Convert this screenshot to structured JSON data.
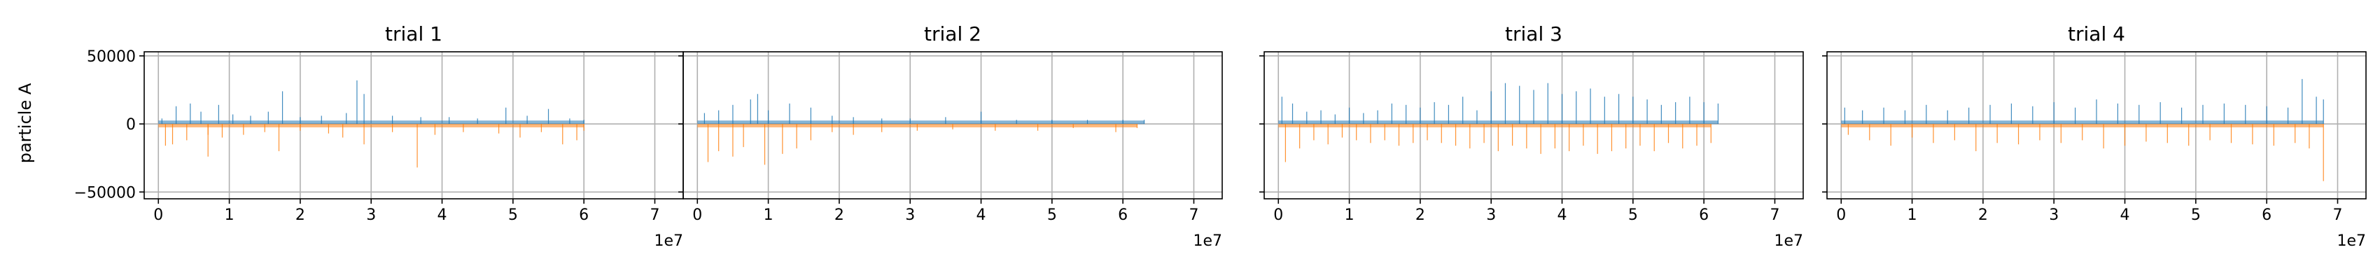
{
  "figure": {
    "ylabel": "particle A",
    "x_offset_label": "1e7"
  },
  "colors": {
    "positive": "#1f77b4",
    "negative": "#ff7f0e",
    "grid": "#b0b0b0",
    "axes": "#000000"
  },
  "chart_data": [
    {
      "type": "bar",
      "title": "trial 1",
      "xlabel": "",
      "ylabel": "particle A",
      "xlim": [
        -0.2,
        7.4
      ],
      "ylim": [
        -55000,
        53000
      ],
      "x_ticks": [
        0,
        1,
        2,
        3,
        4,
        5,
        6,
        7
      ],
      "y_ticks": [
        -50000,
        0,
        50000
      ],
      "x_scale_note": "1e7",
      "grid": true,
      "series": [
        {
          "sign": "positive",
          "x": [
            0.05,
            0.25,
            0.45,
            0.6,
            0.85,
            1.05,
            1.3,
            1.55,
            1.75,
            2.0,
            2.3,
            2.65,
            2.8,
            2.9,
            3.3,
            3.7,
            4.1,
            4.5,
            4.9,
            5.2,
            5.5,
            5.8,
            6.0
          ],
          "values": [
            4000,
            13000,
            15000,
            9000,
            14000,
            7000,
            6000,
            9000,
            24000,
            5000,
            6000,
            8000,
            32000,
            22000,
            6000,
            5000,
            5000,
            4000,
            12000,
            6000,
            11000,
            4000,
            3000
          ]
        },
        {
          "sign": "negative",
          "x": [
            0.1,
            0.2,
            0.4,
            0.7,
            0.7,
            0.9,
            1.2,
            1.5,
            1.7,
            2.0,
            2.4,
            2.6,
            2.9,
            3.3,
            3.65,
            3.9,
            4.3,
            4.8,
            5.1,
            5.4,
            5.7,
            5.9,
            6.0
          ],
          "values": [
            -16000,
            -15000,
            -12000,
            -8000,
            -24000,
            -10000,
            -8000,
            -6000,
            -20000,
            -5000,
            -7000,
            -10000,
            -15000,
            -6000,
            -32000,
            -8000,
            -6000,
            -7000,
            -10000,
            -6000,
            -15000,
            -12000,
            -5000
          ]
        }
      ]
    },
    {
      "type": "bar",
      "title": "trial 2",
      "xlabel": "",
      "ylabel": "",
      "xlim": [
        -0.2,
        7.4
      ],
      "ylim": [
        -55000,
        53000
      ],
      "x_ticks": [
        0,
        1,
        2,
        3,
        4,
        5,
        6,
        7
      ],
      "y_ticks": [
        -50000,
        0,
        50000
      ],
      "x_scale_note": "1e7",
      "grid": true,
      "series": [
        {
          "sign": "positive",
          "x": [
            0.1,
            0.3,
            0.5,
            0.75,
            0.85,
            1.0,
            1.3,
            1.6,
            1.9,
            2.2,
            2.6,
            3.0,
            3.5,
            4.0,
            4.5,
            5.0,
            5.5,
            6.0,
            6.3
          ],
          "values": [
            8000,
            10000,
            14000,
            18000,
            22000,
            10000,
            15000,
            12000,
            6000,
            5000,
            4000,
            4000,
            5000,
            9000,
            3000,
            3000,
            3000,
            3000,
            3000
          ]
        },
        {
          "sign": "negative",
          "x": [
            0.15,
            0.3,
            0.5,
            0.65,
            0.95,
            1.2,
            1.4,
            1.6,
            1.9,
            2.2,
            2.6,
            3.1,
            3.6,
            4.2,
            4.8,
            5.3,
            5.9,
            6.2
          ],
          "values": [
            -28000,
            -20000,
            -24000,
            -17000,
            -30000,
            -22000,
            -18000,
            -12000,
            -6000,
            -8000,
            -6000,
            -5000,
            -4000,
            -5000,
            -5000,
            -3000,
            -6000,
            -3000
          ]
        }
      ]
    },
    {
      "type": "bar",
      "title": "trial 3",
      "xlabel": "",
      "ylabel": "",
      "xlim": [
        -0.2,
        7.4
      ],
      "ylim": [
        -55000,
        53000
      ],
      "x_ticks": [
        0,
        1,
        2,
        3,
        4,
        5,
        6,
        7
      ],
      "y_ticks": [
        -50000,
        0,
        50000
      ],
      "x_scale_note": "1e7",
      "grid": true,
      "series": [
        {
          "sign": "positive",
          "x": [
            0.05,
            0.2,
            0.4,
            0.6,
            0.8,
            1.0,
            1.2,
            1.4,
            1.6,
            1.8,
            2.0,
            2.2,
            2.4,
            2.6,
            2.8,
            3.0,
            3.2,
            3.4,
            3.6,
            3.8,
            4.0,
            4.2,
            4.4,
            4.6,
            4.8,
            5.0,
            5.2,
            5.4,
            5.6,
            5.8,
            6.0,
            6.2
          ],
          "values": [
            20000,
            15000,
            9000,
            10000,
            7000,
            12000,
            8000,
            10000,
            15000,
            14000,
            12000,
            16000,
            14000,
            20000,
            10000,
            24000,
            30000,
            28000,
            25000,
            30000,
            22000,
            24000,
            26000,
            20000,
            22000,
            20000,
            18000,
            14000,
            16000,
            20000,
            16000,
            15000
          ]
        },
        {
          "sign": "negative",
          "x": [
            0.1,
            0.3,
            0.5,
            0.7,
            0.9,
            1.1,
            1.3,
            1.5,
            1.7,
            1.9,
            2.1,
            2.3,
            2.5,
            2.7,
            2.9,
            3.1,
            3.3,
            3.5,
            3.7,
            3.9,
            4.1,
            4.3,
            4.5,
            4.7,
            4.9,
            5.1,
            5.3,
            5.5,
            5.7,
            5.9,
            6.1
          ],
          "values": [
            -28000,
            -18000,
            -12000,
            -15000,
            -10000,
            -12000,
            -14000,
            -12000,
            -16000,
            -14000,
            -12000,
            -14000,
            -16000,
            -18000,
            -14000,
            -20000,
            -16000,
            -18000,
            -22000,
            -18000,
            -20000,
            -16000,
            -22000,
            -20000,
            -18000,
            -16000,
            -20000,
            -14000,
            -18000,
            -16000,
            -14000
          ]
        }
      ]
    },
    {
      "type": "bar",
      "title": "trial 4",
      "xlabel": "",
      "ylabel": "",
      "xlim": [
        -0.2,
        7.4
      ],
      "ylim": [
        -55000,
        53000
      ],
      "x_ticks": [
        0,
        1,
        2,
        3,
        4,
        5,
        6,
        7
      ],
      "y_ticks": [
        -50000,
        0,
        50000
      ],
      "x_scale_note": "1e7",
      "grid": true,
      "series": [
        {
          "sign": "positive",
          "x": [
            0.05,
            0.3,
            0.6,
            0.9,
            1.2,
            1.5,
            1.8,
            2.1,
            2.4,
            2.7,
            3.0,
            3.3,
            3.6,
            3.9,
            4.2,
            4.5,
            4.8,
            5.1,
            5.4,
            5.7,
            6.0,
            6.3,
            6.5,
            6.7,
            6.8
          ],
          "values": [
            12000,
            10000,
            12000,
            10000,
            14000,
            10000,
            12000,
            14000,
            15000,
            13000,
            16000,
            12000,
            18000,
            15000,
            14000,
            16000,
            12000,
            14000,
            15000,
            14000,
            13000,
            12000,
            33000,
            20000,
            18000
          ]
        },
        {
          "sign": "negative",
          "x": [
            0.1,
            0.4,
            0.7,
            1.0,
            1.3,
            1.6,
            1.9,
            2.2,
            2.5,
            2.8,
            3.1,
            3.4,
            3.7,
            4.0,
            4.3,
            4.6,
            4.9,
            5.2,
            5.5,
            5.8,
            6.1,
            6.4,
            6.6,
            6.8
          ],
          "values": [
            -8000,
            -12000,
            -16000,
            -10000,
            -14000,
            -12000,
            -20000,
            -14000,
            -15000,
            -12000,
            -14000,
            -12000,
            -18000,
            -16000,
            -13000,
            -14000,
            -16000,
            -12000,
            -14000,
            -15000,
            -16000,
            -14000,
            -18000,
            -42000
          ]
        }
      ]
    }
  ]
}
